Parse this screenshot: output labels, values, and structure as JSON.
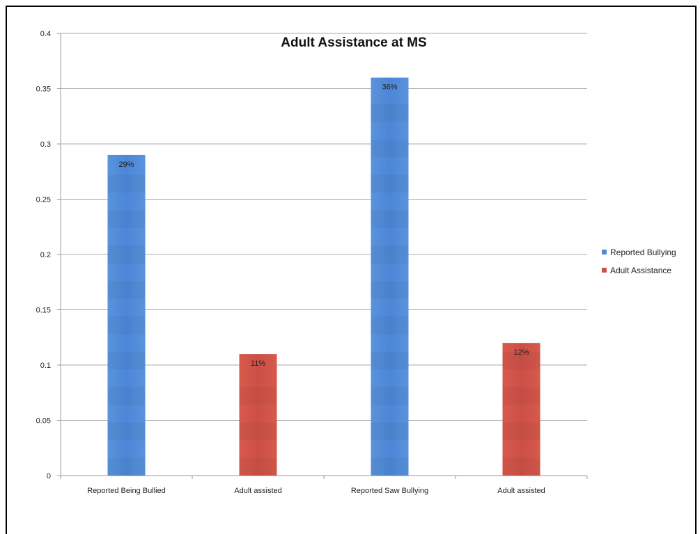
{
  "chart_data": {
    "type": "bar",
    "title": "Adult Assistance at MS",
    "xlabel": "",
    "ylabel": "",
    "ylim": [
      0,
      0.4
    ],
    "yticks": [
      "0",
      "0.05",
      "0.1",
      "0.15",
      "0.2",
      "0.25",
      "0.3",
      "0.35",
      "0.4"
    ],
    "categories": [
      "Reported Being Bullied",
      "Adult assisted",
      "Reported Saw Bullying",
      "Adult assisted"
    ],
    "series": [
      {
        "name": "Reported Bullying",
        "color": "#4f8ad8",
        "values": [
          0.29,
          null,
          0.36,
          null
        ],
        "labels": [
          "29%",
          "",
          "36%",
          ""
        ]
      },
      {
        "name": "Adult Assistance",
        "color": "#d2504a",
        "values": [
          null,
          0.11,
          null,
          0.12
        ],
        "labels": [
          "",
          "11%",
          "",
          "12%"
        ]
      }
    ],
    "grid": true,
    "legend": "right"
  }
}
